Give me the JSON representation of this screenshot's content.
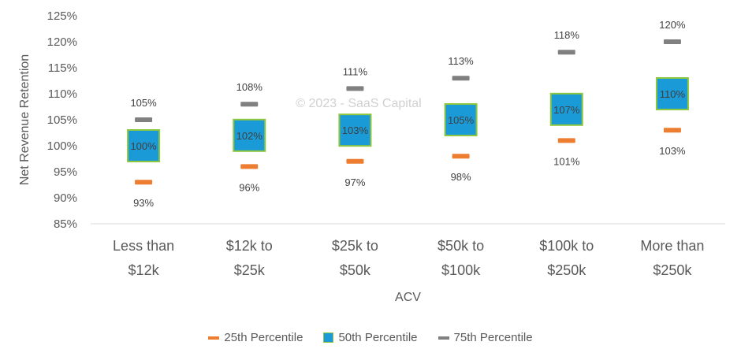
{
  "chart_data": {
    "type": "scatter",
    "title": "",
    "xlabel": "ACV",
    "ylabel": "Net Revenue Retention",
    "watermark": "© 2023 - SaaS Capital",
    "categories": [
      [
        "Less than",
        "$12k"
      ],
      [
        "$12k to",
        "$25k"
      ],
      [
        "$25k to",
        "$50k"
      ],
      [
        "$50k to",
        "$100k"
      ],
      [
        "$100k to",
        "$250k"
      ],
      [
        "More than",
        "$250k"
      ]
    ],
    "ylim": [
      85,
      125
    ],
    "yticks": [
      85,
      90,
      95,
      100,
      105,
      110,
      115,
      120,
      125
    ],
    "ytick_labels": [
      "85%",
      "90%",
      "95%",
      "100%",
      "105%",
      "110%",
      "115%",
      "120%",
      "125%"
    ],
    "grid": false,
    "legend_position": "bottom",
    "series": [
      {
        "name": "25th Percentile",
        "color": "#ed7d31",
        "values": [
          93,
          96,
          97,
          98,
          101,
          103
        ],
        "labels": [
          "93%",
          "96%",
          "97%",
          "98%",
          "101%",
          "103%"
        ]
      },
      {
        "name": "50th Percentile",
        "color": "#1a9ad6",
        "border_color": "#8dc63f",
        "values": [
          100,
          102,
          103,
          105,
          107,
          110
        ],
        "labels": [
          "100%",
          "102%",
          "103%",
          "105%",
          "107%",
          "110%"
        ]
      },
      {
        "name": "75th Percentile",
        "color": "#808080",
        "values": [
          105,
          108,
          111,
          113,
          118,
          120
        ],
        "labels": [
          "105%",
          "108%",
          "111%",
          "113%",
          "118%",
          "120%"
        ]
      }
    ]
  }
}
